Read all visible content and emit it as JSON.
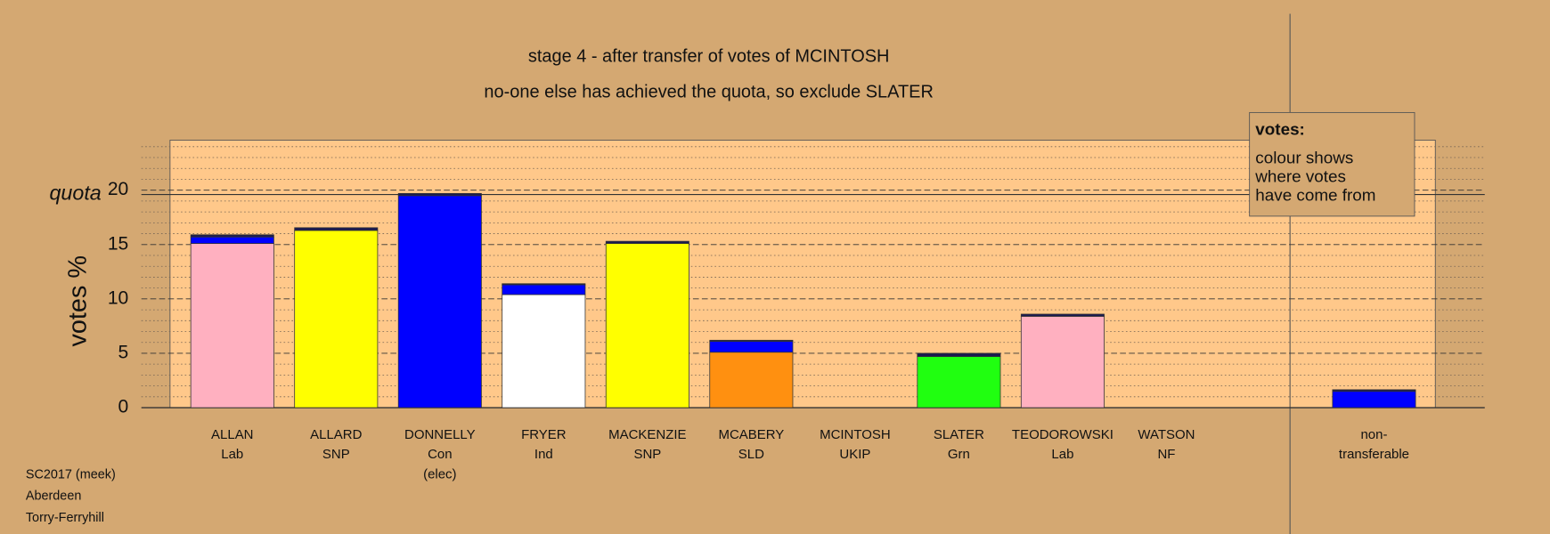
{
  "chart_data": {
    "type": "stacked-bar",
    "title": "stage 4 - after transfer of votes of MCINTOSH",
    "subtitle": "no-one else has achieved the quota, so exclude SLATER",
    "ylabel": "votes %",
    "categories": [
      [
        "ALLAN",
        "Lab"
      ],
      [
        "ALLARD",
        "SNP"
      ],
      [
        "DONNELLY",
        "Con",
        "(elec)"
      ],
      [
        "FRYER",
        "Ind"
      ],
      [
        "MACKENZIE",
        "SNP"
      ],
      [
        "MCABERY",
        "SLD"
      ],
      [
        "MCINTOSH",
        "UKIP"
      ],
      [
        "SLATER",
        "Grn"
      ],
      [
        "TEODOROWSKI",
        "Lab"
      ],
      [
        "WATSON",
        "NF"
      ],
      [
        "non-",
        "transferable"
      ]
    ],
    "series": [
      {
        "colors": [
          "#ffb0c0",
          "#ffff00",
          "#0000ff",
          "#ffffff",
          "#ffff00",
          "#ff9010",
          "#888888",
          "#20ff10",
          "#ffb0c0",
          "#888888",
          "#0000ff"
        ],
        "values": [
          15.1,
          16.3,
          19.5,
          10.4,
          15.1,
          5.1,
          0,
          4.7,
          8.4,
          0,
          0
        ]
      },
      {
        "color": "#0000ff",
        "values": [
          0.6,
          0,
          0,
          0.9,
          0,
          1.0,
          0,
          0,
          0,
          0,
          1.5
        ]
      },
      {
        "color": "#1a1a50",
        "values": [
          0.2,
          0.25,
          0.2,
          0.1,
          0.2,
          0.1,
          0,
          0.3,
          0.2,
          0,
          0.15
        ]
      }
    ],
    "ylim": [
      0,
      24.6
    ],
    "yticks": [
      0,
      5,
      10,
      15,
      20
    ],
    "minor_yticks": [
      1,
      2,
      3,
      4,
      6,
      7,
      8,
      9,
      11,
      12,
      13,
      14,
      16,
      17,
      18,
      19,
      21,
      22,
      23,
      24
    ],
    "quota": {
      "label": "quota",
      "value": 19.6
    },
    "legend": {
      "title": "votes:",
      "lines": [
        "colour shows",
        "where votes",
        "have come from"
      ]
    },
    "footer": [
      "SC2017 (meek)",
      "Aberdeen",
      "Torry-Ferryhill"
    ]
  }
}
